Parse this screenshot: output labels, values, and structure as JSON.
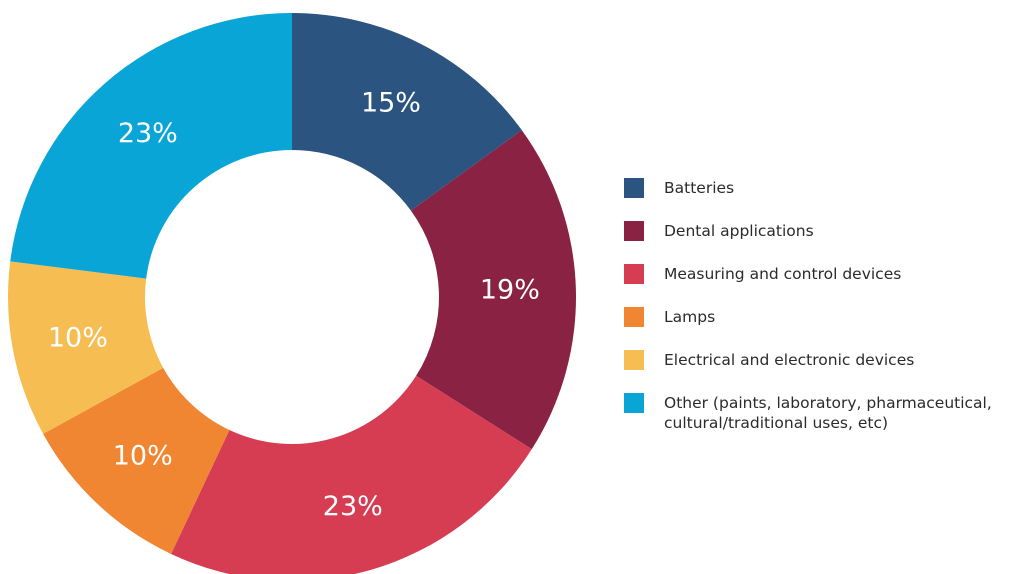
{
  "chart_data": {
    "type": "pie",
    "variant": "donut",
    "start_angle_deg": 0,
    "direction": "clockwise",
    "categories": [
      "Batteries",
      "Dental applications",
      "Measuring and control devices",
      "Lamps",
      "Electrical and electronic devices",
      "Other (paints, laboratory, pharmaceutical,\ncultural/traditional uses, etc)"
    ],
    "values": [
      15,
      19,
      23,
      10,
      10,
      23
    ],
    "value_labels": [
      "15%",
      "19%",
      "23%",
      "10%",
      "10%",
      "23%"
    ],
    "colors": [
      "#2b5480",
      "#8a2243",
      "#d73d52",
      "#f08532",
      "#f6be52",
      "#08a5d6"
    ],
    "legend_position": "right"
  }
}
